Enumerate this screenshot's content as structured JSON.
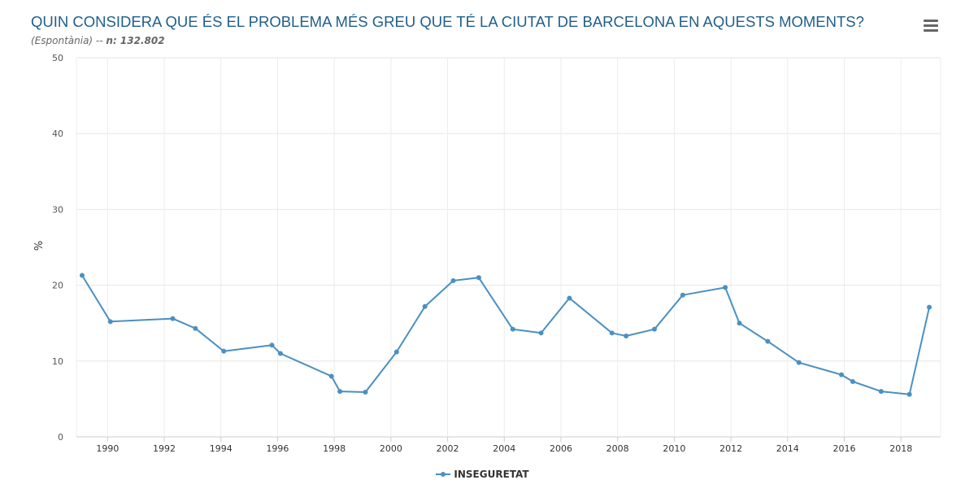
{
  "header": {
    "title": "QUIN CONSIDERA QUE ÉS EL PROBLEMA MÉS GREU QUE TÉ LA CIUTAT DE BARCELONA EN AQUESTS MOMENTS?",
    "subtitle_prefix": "(Espontània) -- ",
    "subtitle_n": "n: 132.802",
    "menu_icon": "hamburger-menu-icon"
  },
  "chart_data": {
    "type": "line",
    "title": "QUIN CONSIDERA QUE ÉS EL PROBLEMA MÉS GREU QUE TÉ LA CIUTAT DE BARCELONA EN AQUESTS MOMENTS?",
    "subtitle": "(Espontània) -- n: 132.802",
    "xlabel": "",
    "ylabel": "%",
    "xlim": [
      1988.9,
      2019.4
    ],
    "ylim": [
      0,
      50
    ],
    "xticks": [
      1990,
      1992,
      1994,
      1996,
      1998,
      2000,
      2002,
      2004,
      2006,
      2008,
      2010,
      2012,
      2014,
      2016,
      2018
    ],
    "yticks": [
      0,
      10,
      20,
      30,
      40,
      50
    ],
    "grid": true,
    "legend_position": "bottom-center",
    "series": [
      {
        "name": "INSEGURETAT",
        "color": "#4a90c2",
        "x": [
          1989.1,
          1990.1,
          1992.3,
          1993.1,
          1994.1,
          1995.8,
          1996.1,
          1997.9,
          1998.2,
          1999.1,
          2000.2,
          2001.2,
          2002.2,
          2003.1,
          2004.3,
          2005.3,
          2006.3,
          2007.8,
          2008.3,
          2009.3,
          2010.3,
          2011.8,
          2012.3,
          2013.3,
          2014.4,
          2015.9,
          2016.3,
          2017.3,
          2018.3,
          2019.0
        ],
        "values": [
          21.3,
          15.2,
          15.6,
          14.3,
          11.3,
          12.1,
          11.0,
          8.0,
          6.0,
          5.9,
          11.2,
          17.2,
          20.6,
          21.0,
          14.2,
          13.7,
          18.3,
          13.7,
          13.3,
          14.2,
          18.7,
          19.7,
          15.0,
          12.6,
          9.8,
          8.2,
          7.3,
          6.0,
          5.6,
          17.1
        ]
      }
    ]
  }
}
